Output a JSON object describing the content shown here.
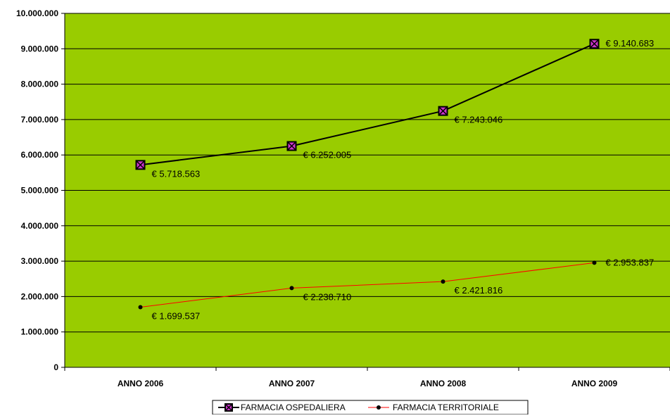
{
  "chart_data": {
    "type": "line",
    "categories": [
      "ANNO 2006",
      "ANNO 2007",
      "ANNO 2008",
      "ANNO 2009"
    ],
    "series": [
      {
        "name": "FARMACIA OSPEDALIERA",
        "values": [
          5718563,
          6252005,
          7243046,
          9140683
        ],
        "labels": [
          "€ 5.718.563",
          "€ 6.252.005",
          "€ 7.243.046",
          "€ 9.140.683"
        ],
        "color": "#000000",
        "marker": "x-square",
        "marker_fill": "#cc33cc"
      },
      {
        "name": "FARMACIA TERRITORIALE",
        "values": [
          1699537,
          2238710,
          2421816,
          2953837
        ],
        "labels": [
          "€ 1.699.537",
          "€ 2.238.710",
          "€ 2.421.816",
          "€ 2.953.837"
        ],
        "color": "#ff0000",
        "marker": "dot",
        "marker_fill": "#000000"
      }
    ],
    "yticks": [
      "0",
      "1.000.000",
      "2.000.000",
      "3.000.000",
      "4.000.000",
      "5.000.000",
      "6.000.000",
      "7.000.000",
      "8.000.000",
      "9.000.000",
      "10.000.000"
    ],
    "ylim": [
      0,
      10000000
    ],
    "grid": true,
    "plot_background": "#99cc00",
    "legend_position": "bottom"
  }
}
